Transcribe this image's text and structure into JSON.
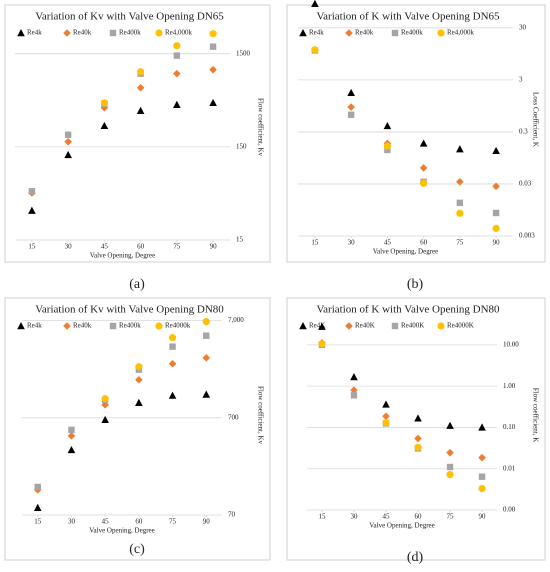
{
  "chart_data": [
    {
      "type": "scatter",
      "title": "Variation of Kv with Valve Opening DN65",
      "caption": "(a)",
      "xlabel": "Valve Opening, Degree",
      "ylabel": "Flow coefficient, Kv",
      "x": [
        15,
        30,
        45,
        60,
        75,
        90
      ],
      "xlim": [
        8,
        97
      ],
      "xticks": [
        15,
        30,
        45,
        60,
        75,
        90
      ],
      "ylim": [
        15,
        4000
      ],
      "yticks": [
        15,
        150,
        1500
      ],
      "log": true,
      "grid": true,
      "legend": "top",
      "series": [
        {
          "name": "Re4k",
          "color": "#000000",
          "marker": "triangle",
          "values": [
            31,
            123,
            252,
            366,
            424,
            445
          ]
        },
        {
          "name": "Re40k",
          "color": "#ed7d31",
          "marker": "diamond",
          "values": [
            48,
            170,
            394,
            646,
            915,
            1010
          ]
        },
        {
          "name": "Re400k",
          "color": "#a5a5a5",
          "marker": "square",
          "values": [
            50,
            202,
            435,
            915,
            1430,
            1785
          ]
        },
        {
          "name": "Re4,000k",
          "color": "#ffc000",
          "marker": "circle",
          "values": [
            null,
            null,
            445,
            960,
            1825,
            2460
          ]
        }
      ]
    },
    {
      "type": "scatter",
      "title": "Variation of K with Valve Opening DN65",
      "caption": "(b)",
      "xlabel": "Valve Opening, Degree",
      "ylabel": "Loss Coefficient, K",
      "x": [
        15,
        30,
        45,
        60,
        75,
        90
      ],
      "xlim": [
        8,
        97
      ],
      "xticks": [
        15,
        30,
        45,
        60,
        75,
        90
      ],
      "ylim": [
        0.003,
        90
      ],
      "yticks": [
        30,
        3,
        0.3,
        0.03,
        0.003
      ],
      "log": true,
      "grid": true,
      "legend": "top",
      "series": [
        {
          "name": "Re4k",
          "color": "#000000",
          "marker": "triangle",
          "values": [
            87,
            1.69,
            0.39,
            0.18,
            0.14,
            0.13
          ]
        },
        {
          "name": "Re40k",
          "color": "#ed7d31",
          "marker": "diamond",
          "values": [
            11.3,
            0.9,
            0.18,
            0.061,
            0.033,
            0.027
          ]
        },
        {
          "name": "Re400k",
          "color": "#a5a5a5",
          "marker": "square",
          "values": [
            11,
            0.64,
            0.135,
            0.033,
            0.013,
            0.0083
          ]
        },
        {
          "name": "Re4,000k",
          "color": "#ffc000",
          "marker": "circle",
          "values": [
            11.3,
            null,
            0.16,
            0.031,
            0.0082,
            0.0042
          ]
        }
      ]
    },
    {
      "type": "scatter",
      "title": "Variation of Kv with Valve Opening DN80",
      "caption": "(c)",
      "xlabel": "Valve Opening, Degree",
      "ylabel": "Flow coefficient, Kv",
      "x": [
        15,
        30,
        45,
        60,
        75,
        90
      ],
      "xlim": [
        8,
        97
      ],
      "xticks": [
        15,
        30,
        45,
        60,
        75,
        90
      ],
      "ylim": [
        70,
        8000
      ],
      "yticks": [
        {
          "value": 7000,
          "label": "7,000"
        },
        700,
        70
      ],
      "log": true,
      "grid": true,
      "legend": "top",
      "series": [
        {
          "name": "Re4k",
          "color": "#000000",
          "marker": "triangle",
          "values": [
            83,
            327,
            667,
            1000,
            1185,
            1215
          ]
        },
        {
          "name": "Re40k",
          "color": "#ed7d31",
          "marker": "diamond",
          "values": [
            127,
            457,
            952,
            1725,
            2520,
            2900
          ]
        },
        {
          "name": "Re400k",
          "color": "#a5a5a5",
          "marker": "square",
          "values": [
            136,
            526,
            1070,
            2190,
            3780,
            4900
          ]
        },
        {
          "name": "Re4000k",
          "color": "#ffc000",
          "marker": "circle",
          "values": [
            null,
            null,
            1100,
            2350,
            4680,
            6840
          ]
        }
      ]
    },
    {
      "type": "scatter",
      "title": "Variation of K with Valve Opening DN80",
      "caption": "(d)",
      "xlabel": "Valve Opening, Degree",
      "ylabel": "Flow coefficient, K",
      "x": [
        15,
        30,
        45,
        60,
        75,
        90
      ],
      "xlim": [
        8,
        97
      ],
      "xticks": [
        15,
        30,
        45,
        60,
        75,
        90
      ],
      "ylim": [
        0.001,
        40
      ],
      "yticks": [
        {
          "value": 10,
          "label": "10.00"
        },
        {
          "value": 1,
          "label": "1.00"
        },
        {
          "value": 0.1,
          "label": "0.10"
        },
        {
          "value": 0.01,
          "label": "0.01"
        },
        {
          "value": 0.001,
          "label": "0.00"
        }
      ],
      "log": true,
      "grid": true,
      "legend": "top",
      "series": [
        {
          "name": "Re4K",
          "color": "#000000",
          "marker": "triangle",
          "values": [
            27.5,
            1.66,
            0.36,
            0.166,
            0.11,
            0.1
          ]
        },
        {
          "name": "Re40K",
          "color": "#ed7d31",
          "marker": "diamond",
          "values": [
            11.2,
            0.8,
            0.186,
            0.054,
            0.0245,
            0.0185
          ]
        },
        {
          "name": "Re400K",
          "color": "#a5a5a5",
          "marker": "square",
          "values": [
            10,
            0.6,
            0.125,
            0.031,
            0.011,
            0.0064
          ]
        },
        {
          "name": "Re4000K",
          "color": "#ffc000",
          "marker": "circle",
          "values": [
            10.6,
            null,
            0.13,
            0.033,
            0.0072,
            0.0033
          ]
        }
      ]
    }
  ]
}
